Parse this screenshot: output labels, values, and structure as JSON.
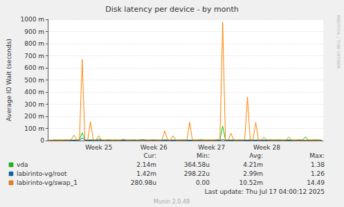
{
  "chart_data": {
    "type": "line",
    "title": "Disk latency per device - by month",
    "ylabel": "Average IO Wait (seconds)",
    "categories": [
      null,
      null,
      null,
      null,
      null,
      null,
      null,
      null,
      null,
      null,
      null,
      null,
      null,
      null,
      null,
      null,
      null,
      null,
      "Week 25",
      null,
      null,
      null,
      null,
      null,
      null,
      null,
      null,
      null,
      null,
      null,
      null,
      null,
      null,
      null,
      null,
      null,
      null,
      null,
      "Week 26",
      null,
      null,
      null,
      null,
      null,
      null,
      null,
      null,
      null,
      null,
      null,
      null,
      null,
      null,
      null,
      null,
      null,
      null,
      null,
      null,
      "Week 27",
      null,
      null,
      null,
      null,
      null,
      null,
      null,
      null,
      null,
      null,
      null,
      null,
      null,
      null,
      null,
      null,
      null,
      null,
      null,
      "Week 28",
      null,
      null,
      null,
      null,
      null,
      null,
      null,
      null,
      null,
      null,
      null,
      null,
      null,
      null,
      null,
      null,
      null,
      null,
      null,
      null
    ],
    "series": [
      {
        "name": "vda",
        "color": "#00cc00",
        "summary": [
          "2.14m",
          "364.58u",
          "4.21m",
          "1.38"
        ],
        "values": [
          0.004,
          0.003,
          0.005,
          0.004,
          0.006,
          0.004,
          0.005,
          0.003,
          0.004,
          0.005,
          0.004,
          0.006,
          0.065,
          0.005,
          0.004,
          0.006,
          0.005,
          0.004,
          0.012,
          0.005,
          0.004,
          0.005,
          0.006,
          0.004,
          0.005,
          0.004,
          0.003,
          0.005,
          0.004,
          0.006,
          0.004,
          0.005,
          0.004,
          0.006,
          0.008,
          0.005,
          0.004,
          0.005,
          0.006,
          0.004,
          0.005,
          0.004,
          0.006,
          0.005,
          0.004,
          0.005,
          0.004,
          0.006,
          0.005,
          0.004,
          0.005,
          0.004,
          0.003,
          0.005,
          0.004,
          0.006,
          0.005,
          0.004,
          0.005,
          0.004,
          0.005,
          0.004,
          0.006,
          0.12,
          0.005,
          0.004,
          0.005,
          0.006,
          0.004,
          0.005,
          0.004,
          0.005,
          0.004,
          0.006,
          0.005,
          0.004,
          0.005,
          0.004,
          0.006,
          0.005,
          0.004,
          0.005,
          0.006,
          0.004,
          0.005,
          0.004,
          0.005,
          0.006,
          0.004,
          0.005,
          0.004,
          0.005,
          0.004,
          0.03,
          0.005,
          0.004,
          0.005,
          0.006,
          0.004,
          0.003
        ]
      },
      {
        "name": "labirinto-vg/root",
        "color": "#0066b3",
        "summary": [
          "1.42m",
          "298.22u",
          "2.99m",
          "1.26"
        ],
        "values": [
          0.002,
          0.003,
          0.002,
          0.003,
          0.002,
          0.003,
          0.002,
          0.003,
          0.002,
          0.003,
          0.002,
          0.003,
          0.02,
          0.003,
          0.002,
          0.003,
          0.002,
          0.003,
          0.005,
          0.003,
          0.002,
          0.003,
          0.002,
          0.003,
          0.002,
          0.003,
          0.002,
          0.003,
          0.002,
          0.003,
          0.002,
          0.003,
          0.002,
          0.003,
          0.004,
          0.003,
          0.002,
          0.003,
          0.002,
          0.003,
          0.002,
          0.003,
          0.002,
          0.003,
          0.002,
          0.003,
          0.002,
          0.003,
          0.002,
          0.003,
          0.002,
          0.003,
          0.002,
          0.003,
          0.002,
          0.003,
          0.002,
          0.003,
          0.002,
          0.003,
          0.002,
          0.003,
          0.002,
          0.01,
          0.002,
          0.003,
          0.002,
          0.003,
          0.002,
          0.003,
          0.002,
          0.003,
          0.002,
          0.003,
          0.002,
          0.003,
          0.002,
          0.003,
          0.002,
          0.003,
          0.002,
          0.003,
          0.002,
          0.003,
          0.002,
          0.003,
          0.002,
          0.003,
          0.002,
          0.003,
          0.002,
          0.003,
          0.002,
          0.003,
          0.002,
          0.003,
          0.002,
          0.003,
          0.002,
          0.003
        ]
      },
      {
        "name": "labirinto-vg/swap_1",
        "color": "#ff8000",
        "summary": [
          "280.98u",
          "0.00",
          "10.52m",
          "14.49"
        ],
        "values": [
          0.004,
          0.003,
          0.005,
          0.004,
          0.003,
          0.004,
          0.006,
          0.005,
          0.008,
          0.045,
          0.006,
          0.005,
          0.67,
          0.006,
          0.005,
          0.155,
          0.005,
          0.006,
          0.04,
          0.005,
          0.004,
          0.006,
          0.005,
          0.004,
          0.005,
          0.004,
          0.006,
          0.012,
          0.005,
          0.004,
          0.005,
          0.006,
          0.004,
          0.005,
          0.006,
          0.005,
          0.004,
          0.005,
          0.006,
          0.005,
          0.004,
          0.005,
          0.08,
          0.005,
          0.004,
          0.04,
          0.005,
          0.004,
          0.005,
          0.006,
          0.005,
          0.15,
          0.005,
          0.004,
          0.005,
          0.006,
          0.005,
          0.004,
          0.005,
          0.004,
          0.005,
          0.006,
          0.01,
          0.975,
          0.006,
          0.005,
          0.06,
          0.005,
          0.004,
          0.006,
          0.005,
          0.006,
          0.36,
          0.005,
          0.006,
          0.15,
          0.005,
          0.006,
          0.03,
          0.005,
          0.006,
          0.005,
          0.004,
          0.006,
          0.005,
          0.004,
          0.005,
          0.03,
          0.005,
          0.004,
          0.005,
          0.006,
          0.005,
          0.004,
          0.005,
          0.004,
          0.005,
          0.004,
          0.005,
          0.004
        ]
      }
    ],
    "summary_columns": [
      "Cur:",
      "Min:",
      "Avg:",
      "Max:"
    ],
    "ylim": [
      0,
      1
    ],
    "yticks": [
      0,
      {
        "value": 0.1,
        "label": "100 m"
      },
      {
        "value": 0.2,
        "label": "200 m"
      },
      {
        "value": 0.3,
        "label": "300 m"
      },
      {
        "value": 0.4,
        "label": "400 m"
      },
      {
        "value": 0.5,
        "label": "500 m"
      },
      {
        "value": 0.6,
        "label": "600 m"
      },
      {
        "value": 0.7,
        "label": "700 m"
      },
      {
        "value": 0.8,
        "label": "800 m"
      },
      {
        "value": 0.9,
        "label": "900 m"
      },
      {
        "value": 1,
        "label": "1000 m"
      }
    ],
    "grid": true,
    "legend": "bottom",
    "watermark": "RRDTOOL / TOBI OETIKER",
    "footer": "Last update: Thu Jul 17 04:00:12 2025",
    "credit": "Munin 2.0.49"
  }
}
